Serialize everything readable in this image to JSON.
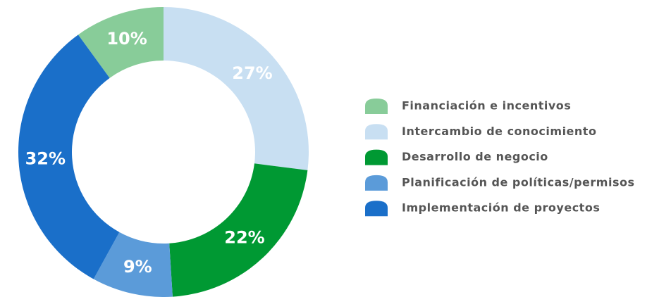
{
  "chart_data": {
    "type": "donut",
    "categories": [
      "Financiación e incentivos",
      "Intercambio de conocimiento",
      "Desarrollo de negocio",
      "Planificación de políticas/permisos",
      "Implementación de proyectos"
    ],
    "values": [
      10,
      27,
      22,
      9,
      32
    ],
    "value_labels": [
      "10%",
      "27%",
      "22%",
      "9%",
      "32%"
    ],
    "colors": [
      "#88cc99",
      "#c8dff2",
      "#009933",
      "#5b9bd9",
      "#1a6fc9"
    ]
  }
}
